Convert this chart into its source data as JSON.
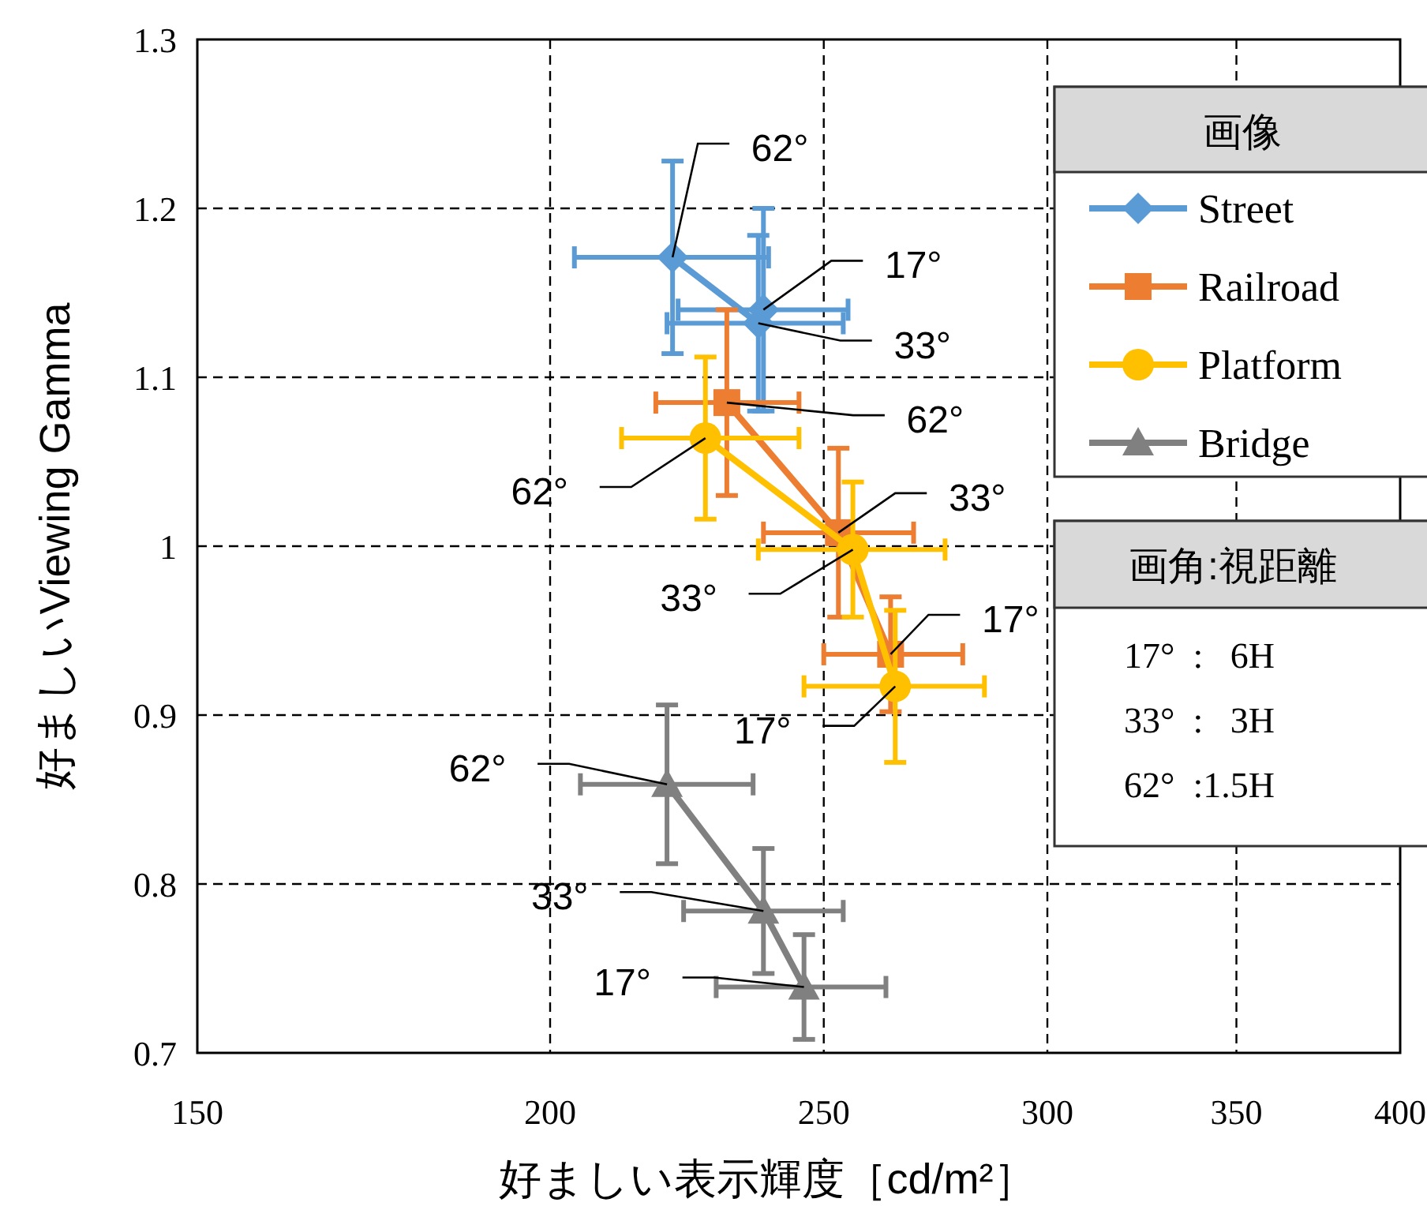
{
  "chart_data": {
    "type": "line",
    "xlabel": "好ましい表示輝度［cd/m²］",
    "ylabel": "好ましいViewing Gamma",
    "legend_title": "画像",
    "legend": "top right",
    "log": "x",
    "grid": true,
    "xlim": [
      150,
      400
    ],
    "xticks": [
      150,
      200,
      250,
      300,
      350,
      400
    ],
    "ylim": [
      0.7,
      1.3
    ],
    "yticks": [
      0.7,
      0.8,
      0.9,
      1,
      1.1,
      1.2,
      1.3
    ],
    "series": [
      {
        "name": "Street",
        "color": "#5b9bd5",
        "marker": "diamond",
        "x": [
          221,
          237,
          238
        ],
        "values": [
          1.171,
          1.132,
          1.14
        ],
        "errors": [
          0.057,
          0.052,
          0.06
        ],
        "xerrors": [
          [
            204,
            239
          ],
          [
            220,
            254
          ],
          [
            222,
            255
          ]
        ]
      },
      {
        "name": "Railroad",
        "color": "#ed7d31",
        "marker": "square",
        "x": [
          231,
          253,
          264
        ],
        "values": [
          1.085,
          1.008,
          0.936
        ],
        "errors": [
          0.055,
          0.05,
          0.034
        ],
        "xerrors": [
          [
            218,
            245
          ],
          [
            238,
            269
          ],
          [
            250,
            280
          ]
        ]
      },
      {
        "name": "Platform",
        "color": "#ffc000",
        "marker": "circle",
        "x": [
          227,
          256,
          265
        ],
        "values": [
          1.064,
          0.998,
          0.917
        ],
        "errors": [
          0.048,
          0.04,
          0.045
        ],
        "xerrors": [
          [
            212,
            245
          ],
          [
            237,
            276
          ],
          [
            246,
            285
          ]
        ]
      },
      {
        "name": "Bridge",
        "color": "#808080",
        "marker": "triangle",
        "x": [
          220,
          238,
          246
        ],
        "values": [
          0.859,
          0.784,
          0.739
        ],
        "errors": [
          0.047,
          0.037,
          0.031
        ],
        "xerrors": [
          [
            205,
            236
          ],
          [
            223,
            254
          ],
          [
            229,
            263
          ]
        ]
      }
    ],
    "annotations": [
      {
        "text": "62°",
        "x": 221,
        "y": 1.171
      },
      {
        "text": "17°",
        "x": 238,
        "y": 1.14
      },
      {
        "text": "33°",
        "x": 237,
        "y": 1.132
      },
      {
        "text": "62°",
        "x": 231,
        "y": 1.085
      },
      {
        "text": "62°",
        "x": 227,
        "y": 1.064
      },
      {
        "text": "33°",
        "x": 253,
        "y": 1.008
      },
      {
        "text": "33°",
        "x": 256,
        "y": 0.998
      },
      {
        "text": "17°",
        "x": 264,
        "y": 0.936
      },
      {
        "text": "17°",
        "x": 265,
        "y": 0.917
      },
      {
        "text": "62°",
        "x": 220,
        "y": 0.859
      },
      {
        "text": "33°",
        "x": 238,
        "y": 0.784
      },
      {
        "text": "17°",
        "x": 246,
        "y": 0.739
      },
      "画角:視距離",
      "17°  :   6H",
      "33°  :   3H",
      "62°  :1.5H"
    ]
  }
}
